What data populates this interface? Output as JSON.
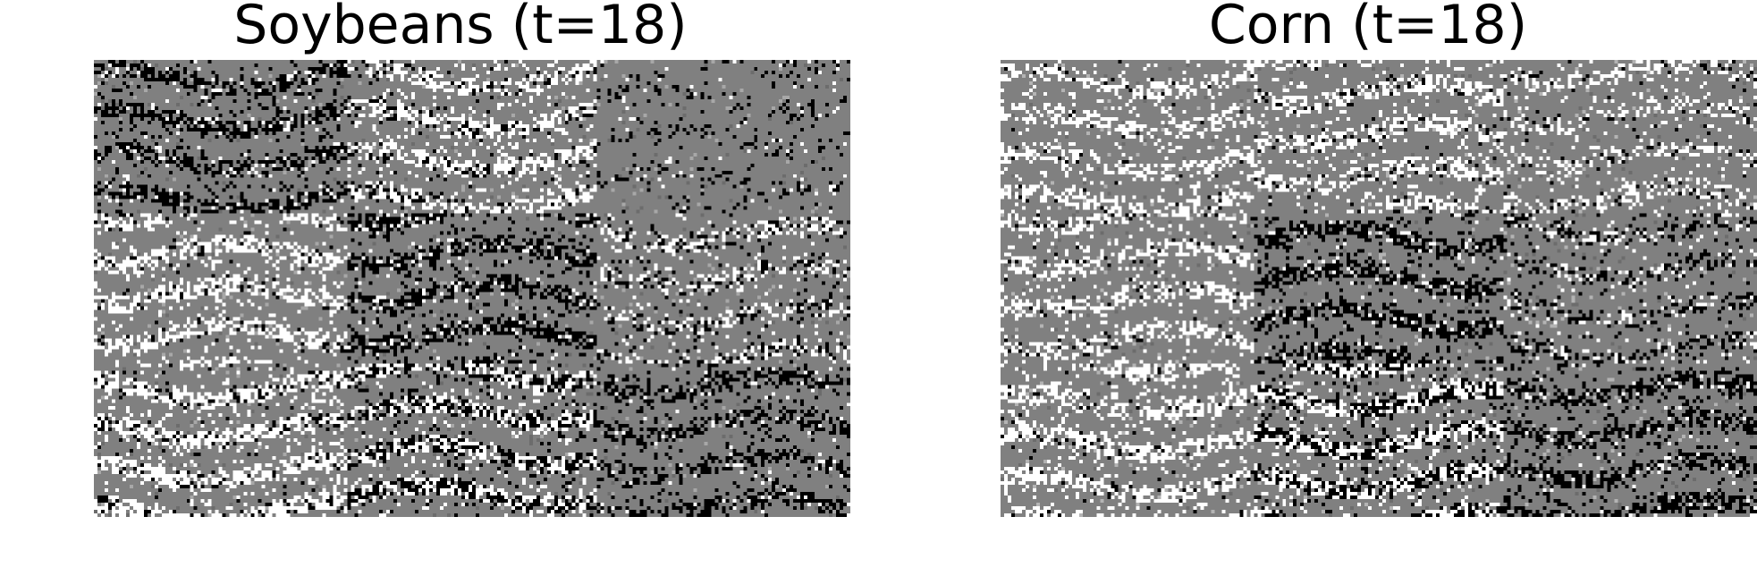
{
  "panels": [
    {
      "title": "Soybeans (t=18)",
      "palette": {
        "background": "#808080",
        "dark": "#000000",
        "light": "#ffffff",
        "mid_light": "#a8a8a8",
        "mid_dark": "#6c6c6c"
      },
      "tiles": [
        [
          {
            "dark": 0.3,
            "light": 0.05
          },
          {
            "dark": 0.08,
            "light": 0.3
          },
          {
            "dark": 0.1,
            "light": 0.02
          }
        ],
        [
          {
            "dark": 0.05,
            "light": 0.3
          },
          {
            "dark": 0.32,
            "light": 0.05
          },
          {
            "dark": 0.12,
            "light": 0.18
          }
        ],
        [
          {
            "dark": 0.08,
            "light": 0.34
          },
          {
            "dark": 0.22,
            "light": 0.22
          },
          {
            "dark": 0.26,
            "light": 0.03
          }
        ]
      ]
    },
    {
      "title": "Corn (t=18)",
      "palette": {
        "background": "#808080",
        "dark": "#000000",
        "light": "#ffffff",
        "mid_light": "#b4b4b4",
        "mid_dark": "#6c6c6c"
      },
      "tiles": [
        [
          {
            "dark": 0.02,
            "light": 0.26
          },
          {
            "dark": 0.05,
            "light": 0.3
          },
          {
            "dark": 0.04,
            "light": 0.2
          }
        ],
        [
          {
            "dark": 0.03,
            "light": 0.26
          },
          {
            "dark": 0.32,
            "light": 0.04
          },
          {
            "dark": 0.16,
            "light": 0.08
          }
        ],
        [
          {
            "dark": 0.04,
            "light": 0.32
          },
          {
            "dark": 0.22,
            "light": 0.26
          },
          {
            "dark": 0.3,
            "light": 0.04
          }
        ]
      ]
    }
  ]
}
